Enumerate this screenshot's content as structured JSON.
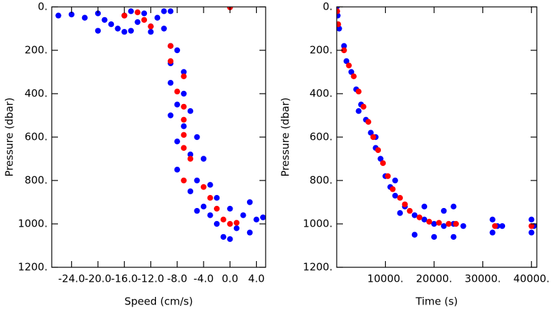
{
  "chart_data": [
    {
      "type": "scatter",
      "xlabel": "Speed (cm/s)",
      "ylabel": "Pressure (dbar)",
      "xlim": [
        -27,
        5.4
      ],
      "ylim": [
        0,
        1200
      ],
      "y_inverted": true,
      "xticks": [
        {
          "value": -24,
          "label": "-24.0"
        },
        {
          "value": -20,
          "label": "-20.0"
        },
        {
          "value": -16,
          "label": "-16.0"
        },
        {
          "value": -12,
          "label": "-12.0"
        },
        {
          "value": -8,
          "label": "-8.0"
        },
        {
          "value": -4,
          "label": "-4.0"
        },
        {
          "value": 0,
          "label": "0.0"
        },
        {
          "value": 4,
          "label": "4.0"
        }
      ],
      "yticks": [
        {
          "value": 0,
          "label": "0."
        },
        {
          "value": 200,
          "label": "200."
        },
        {
          "value": 400,
          "label": "400."
        },
        {
          "value": 600,
          "label": "600."
        },
        {
          "value": 800,
          "label": "800."
        },
        {
          "value": 1000,
          "label": "1000."
        },
        {
          "value": 1200,
          "label": "1200."
        }
      ],
      "series": [
        {
          "color": "#0000ff",
          "x": [
            -26,
            -24,
            -22,
            -20,
            -19,
            -18,
            -17,
            -16,
            -15,
            -14,
            -13,
            -12,
            -11,
            -10,
            -10,
            -15,
            -20,
            -16,
            -12,
            -9,
            -9,
            -8,
            -9,
            -7,
            -9,
            -7,
            -8,
            -6,
            -9,
            -7,
            -5,
            -8,
            -6,
            -4,
            -8,
            -5,
            -3,
            -6,
            -2,
            -4,
            0,
            2,
            3,
            -2,
            1,
            -1,
            4,
            5,
            -3,
            0,
            -5,
            3
          ],
          "values": [
            40,
            35,
            50,
            30,
            60,
            80,
            100,
            40,
            110,
            70,
            30,
            90,
            50,
            100,
            20,
            20,
            110,
            115,
            115,
            20,
            180,
            200,
            260,
            300,
            350,
            400,
            450,
            480,
            500,
            550,
            600,
            620,
            680,
            700,
            750,
            800,
            820,
            850,
            880,
            920,
            930,
            960,
            900,
            1000,
            1020,
            1060,
            980,
            970,
            960,
            1070,
            940,
            1040
          ]
        },
        {
          "color": "#ff0000",
          "x": [
            -16,
            -14,
            -13,
            -12,
            -9,
            -9,
            -7,
            -8,
            -7,
            -7,
            -7,
            -7,
            -6,
            -7,
            -4,
            -3,
            -2,
            -1,
            0,
            1,
            0
          ],
          "values": [
            40,
            25,
            60,
            90,
            180,
            250,
            320,
            390,
            460,
            520,
            590,
            650,
            700,
            800,
            830,
            880,
            930,
            980,
            1000,
            995,
            2
          ]
        }
      ]
    },
    {
      "type": "scatter",
      "xlabel": "Time (s)",
      "ylabel": "Pressure (dbar)",
      "xlim": [
        0,
        41100
      ],
      "ylim": [
        0,
        1200
      ],
      "y_inverted": true,
      "xticks": [
        {
          "value": 10000,
          "label": "10000."
        },
        {
          "value": 20000,
          "label": "20000."
        },
        {
          "value": 30000,
          "label": "30000."
        },
        {
          "value": 40000,
          "label": "40000."
        }
      ],
      "yticks": [
        {
          "value": 0,
          "label": "0."
        },
        {
          "value": 200,
          "label": "200."
        },
        {
          "value": 400,
          "label": "400."
        },
        {
          "value": 600,
          "label": "600."
        },
        {
          "value": 800,
          "label": "800."
        },
        {
          "value": 1000,
          "label": "1000."
        },
        {
          "value": 1200,
          "label": "1200."
        }
      ],
      "series": [
        {
          "color": "#0000ff",
          "x": [
            0,
            200,
            500,
            1500,
            2000,
            3000,
            4000,
            5000,
            6000,
            7000,
            8000,
            9000,
            10000,
            11000,
            12000,
            14000,
            16000,
            18000,
            20000,
            22000,
            24000,
            16000,
            20000,
            24000,
            18000,
            22000,
            24000,
            26000,
            32000,
            32000,
            33000,
            34000,
            40000,
            40000,
            40500,
            8000,
            12000,
            13000,
            4500
          ],
          "values": [
            0,
            40,
            100,
            180,
            250,
            300,
            380,
            450,
            520,
            580,
            650,
            700,
            780,
            830,
            870,
            920,
            960,
            980,
            1000,
            1010,
            1000,
            1050,
            1060,
            1060,
            920,
            940,
            920,
            1010,
            980,
            1040,
            1010,
            1010,
            980,
            1040,
            1010,
            600,
            800,
            950,
            480
          ]
        },
        {
          "color": "#ff0000",
          "x": [
            100,
            300,
            1500,
            2500,
            3500,
            4500,
            5500,
            6500,
            7500,
            8500,
            9500,
            10500,
            11500,
            13000,
            14000,
            15000,
            17000,
            19000,
            21000,
            23000,
            24500,
            32500,
            40000
          ],
          "values": [
            20,
            80,
            200,
            270,
            320,
            390,
            460,
            530,
            600,
            660,
            720,
            780,
            840,
            880,
            910,
            940,
            970,
            990,
            995,
            1000,
            1000,
            1010,
            1010
          ]
        }
      ]
    }
  ]
}
